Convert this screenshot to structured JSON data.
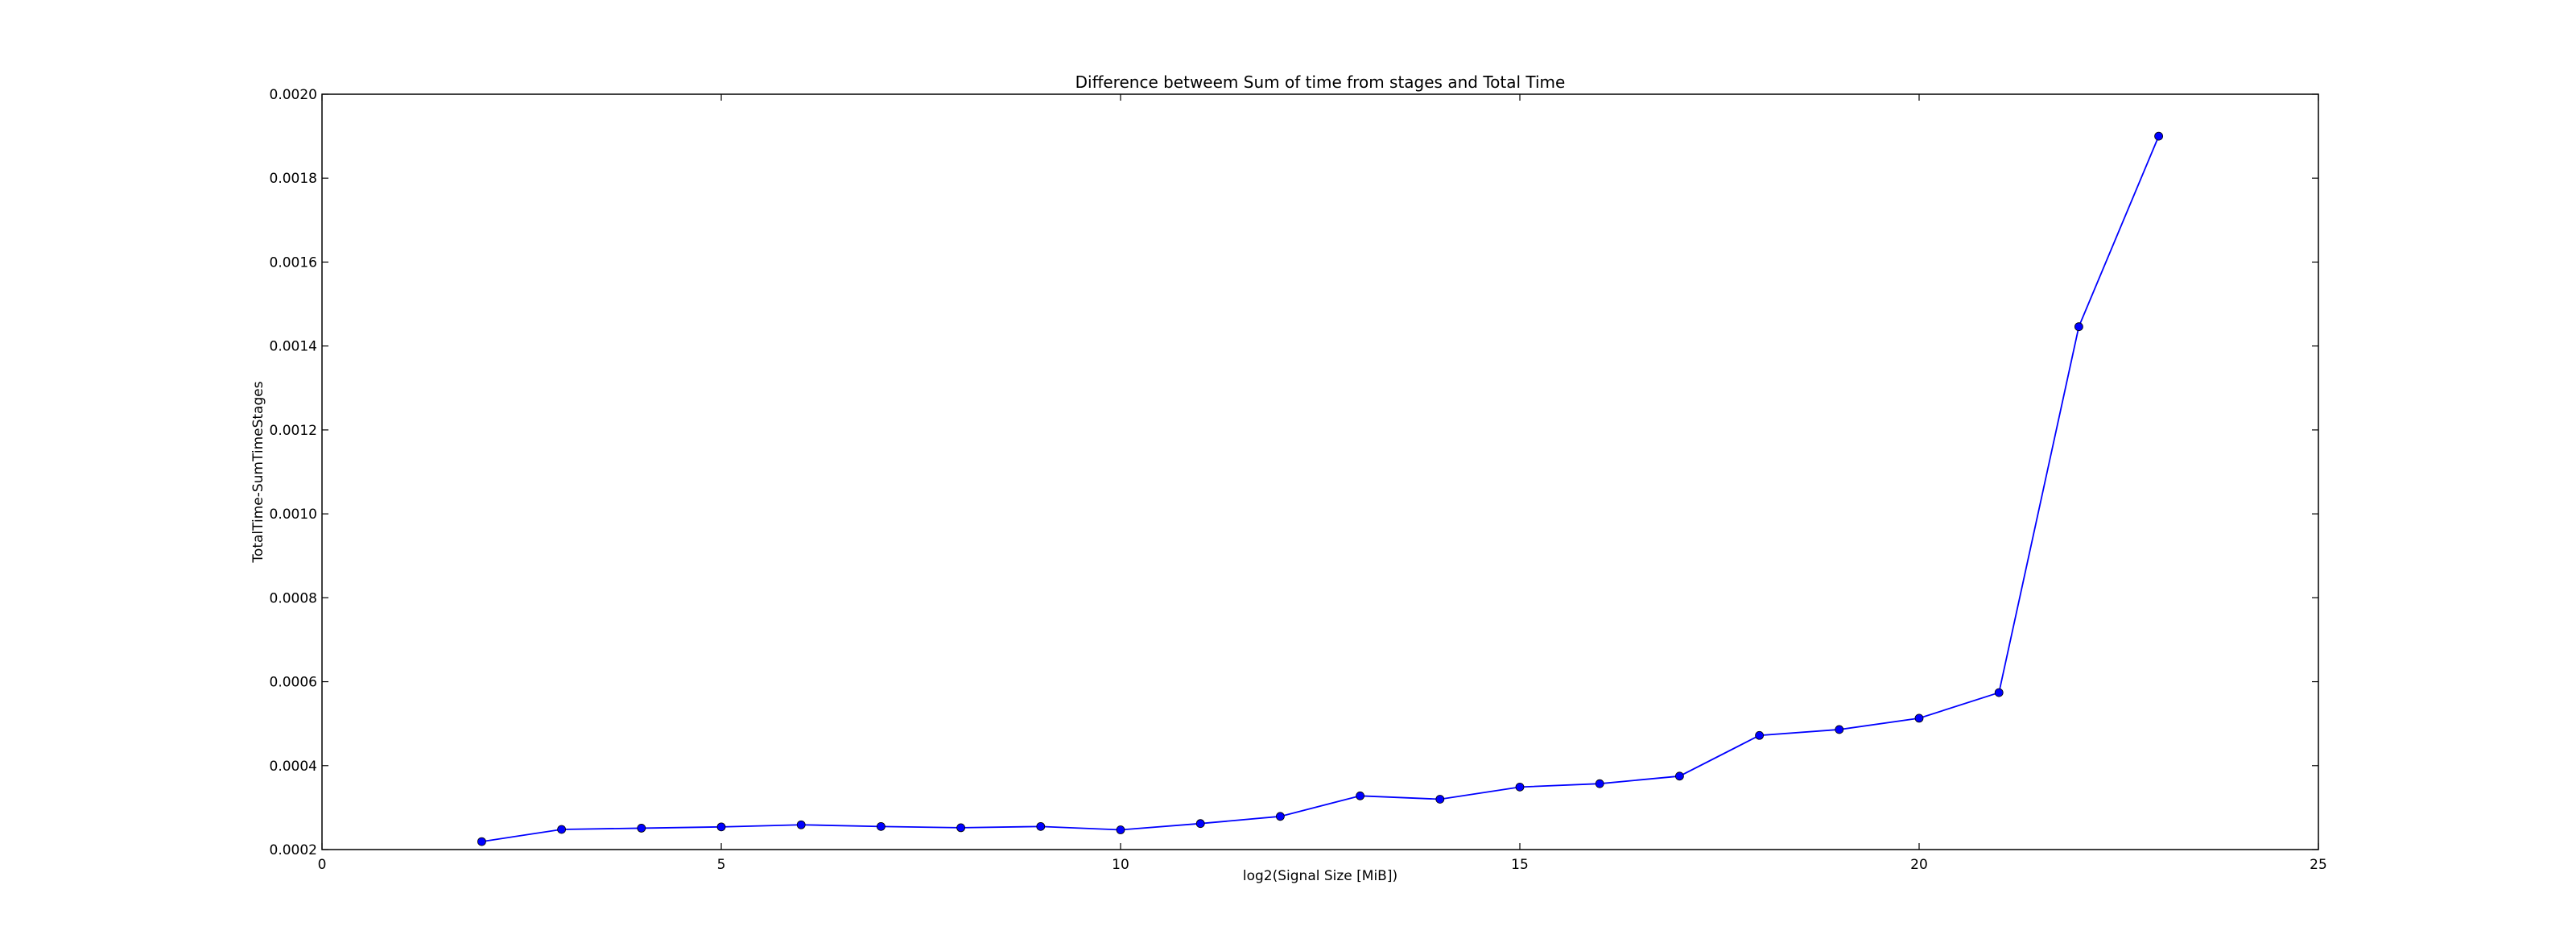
{
  "chart_data": {
    "type": "line",
    "title": "Difference betweem Sum of time from stages and Total Time",
    "xlabel": "log2(Signal Size [MiB])",
    "ylabel": "TotalTime-SumTimeStages",
    "xlim": [
      0,
      25
    ],
    "ylim": [
      0.0002,
      0.002
    ],
    "xticks": [
      0,
      5,
      10,
      15,
      20,
      25
    ],
    "xtick_labels": [
      "0",
      "5",
      "10",
      "15",
      "20",
      "25"
    ],
    "yticks": [
      0.0002,
      0.0004,
      0.0006,
      0.0008,
      0.001,
      0.0012,
      0.0014,
      0.0016,
      0.0018,
      0.002
    ],
    "ytick_labels": [
      "0.0002",
      "0.0004",
      "0.0006",
      "0.0008",
      "0.0010",
      "0.0012",
      "0.0014",
      "0.0016",
      "0.0018",
      "0.0020"
    ],
    "grid": false,
    "line_color": "#0000ff",
    "series": [
      {
        "x": [
          2,
          3,
          4,
          5,
          6,
          7,
          8,
          9,
          10,
          11,
          12,
          13,
          14,
          15,
          16,
          17,
          18,
          19,
          20,
          21,
          22,
          23
        ],
        "values": [
          0.000219,
          0.000248,
          0.000251,
          0.000254,
          0.000259,
          0.000255,
          0.000252,
          0.000255,
          0.000247,
          0.000262,
          0.000279,
          0.000328,
          0.00032,
          0.000349,
          0.000357,
          0.000375,
          0.000472,
          0.000486,
          0.000513,
          0.000574,
          0.001446,
          0.0019
        ]
      }
    ]
  }
}
